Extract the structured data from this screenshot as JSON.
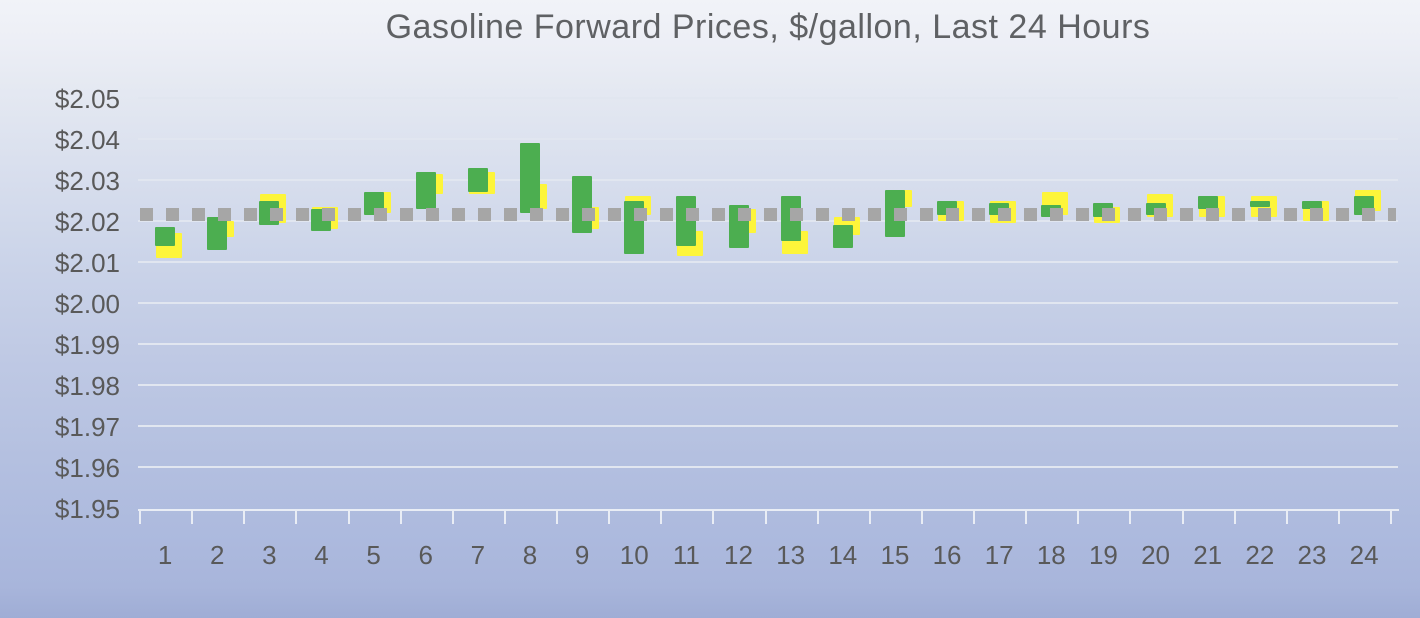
{
  "title": "Gasoline Forward Prices, $/gallon, Last 24 Hours",
  "colors": {
    "green_bar": "#4cae50",
    "yellow_bar": "#fdf53a",
    "dotted_line": "#a6a6a6",
    "axis_text": "#595959",
    "title_text": "#5f6164",
    "gridline": "#e1e6f0",
    "background_top": "#f1f3f8",
    "background_bottom": "#9fadd5"
  },
  "chart_data": {
    "type": "bar",
    "subtype": "floating-range-bars-with-dotted-reference-line",
    "title": "Gasoline Forward Prices, $/gallon, Last 24 Hours",
    "xlabel": "",
    "ylabel": "",
    "legend": "none",
    "grid": true,
    "categories": [
      1,
      2,
      3,
      4,
      5,
      6,
      7,
      8,
      9,
      10,
      11,
      12,
      13,
      14,
      15,
      16,
      17,
      18,
      19,
      20,
      21,
      22,
      23,
      24
    ],
    "x_axis": {
      "tick_labels": [
        "1",
        "2",
        "3",
        "4",
        "5",
        "6",
        "7",
        "8",
        "9",
        "10",
        "11",
        "12",
        "13",
        "14",
        "15",
        "16",
        "17",
        "18",
        "19",
        "20",
        "21",
        "22",
        "23",
        "24"
      ]
    },
    "y_axis": {
      "min": 1.95,
      "max": 2.05,
      "step": 0.01,
      "format": "$0.00",
      "tick_labels": [
        "$2.05",
        "$2.04",
        "$2.03",
        "$2.02",
        "$2.01",
        "$2.00",
        "$1.99",
        "$1.98",
        "$1.97",
        "$1.96",
        "$1.95"
      ]
    },
    "series": [
      {
        "name": "price-range-yellow",
        "type": "floating-bar",
        "color": "#fdf53a",
        "points_low_high": [
          [
            2.011,
            2.017
          ],
          [
            2.016,
            2.02
          ],
          [
            2.0195,
            2.0265
          ],
          [
            2.018,
            2.0235
          ],
          [
            2.022,
            2.027
          ],
          [
            2.0265,
            2.0315
          ],
          [
            2.0265,
            2.032
          ],
          [
            2.023,
            2.029
          ],
          [
            2.018,
            2.0235
          ],
          [
            2.0215,
            2.026
          ],
          [
            2.0115,
            2.0175
          ],
          [
            2.017,
            2.023
          ],
          [
            2.012,
            2.0175
          ],
          [
            2.0165,
            2.021
          ],
          [
            2.0235,
            2.0275
          ],
          [
            2.02,
            2.025
          ],
          [
            2.0195,
            2.025
          ],
          [
            2.0215,
            2.027
          ],
          [
            2.0195,
            2.0235
          ],
          [
            2.021,
            2.0265
          ],
          [
            2.021,
            2.026
          ],
          [
            2.021,
            2.026
          ],
          [
            2.02,
            2.025
          ],
          [
            2.0225,
            2.0275
          ]
        ]
      },
      {
        "name": "price-range-green",
        "type": "floating-bar",
        "color": "#4cae50",
        "points_low_high": [
          [
            2.014,
            2.0185
          ],
          [
            2.013,
            2.021
          ],
          [
            2.019,
            2.025
          ],
          [
            2.0175,
            2.023
          ],
          [
            2.0215,
            2.027
          ],
          [
            2.023,
            2.032
          ],
          [
            2.027,
            2.033
          ],
          [
            2.022,
            2.039
          ],
          [
            2.017,
            2.031
          ],
          [
            2.012,
            2.025
          ],
          [
            2.014,
            2.026
          ],
          [
            2.0135,
            2.024
          ],
          [
            2.015,
            2.026
          ],
          [
            2.0135,
            2.019
          ],
          [
            2.016,
            2.0275
          ],
          [
            2.0215,
            2.025
          ],
          [
            2.0215,
            2.0245
          ],
          [
            2.021,
            2.024
          ],
          [
            2.021,
            2.0245
          ],
          [
            2.0215,
            2.0245
          ],
          [
            2.023,
            2.026
          ],
          [
            2.0235,
            2.025
          ],
          [
            2.023,
            2.025
          ],
          [
            2.0215,
            2.026
          ]
        ]
      },
      {
        "name": "reference-dotted-line",
        "type": "line",
        "style": "dotted",
        "color": "#a6a6a6",
        "value": 2.0215
      }
    ]
  }
}
